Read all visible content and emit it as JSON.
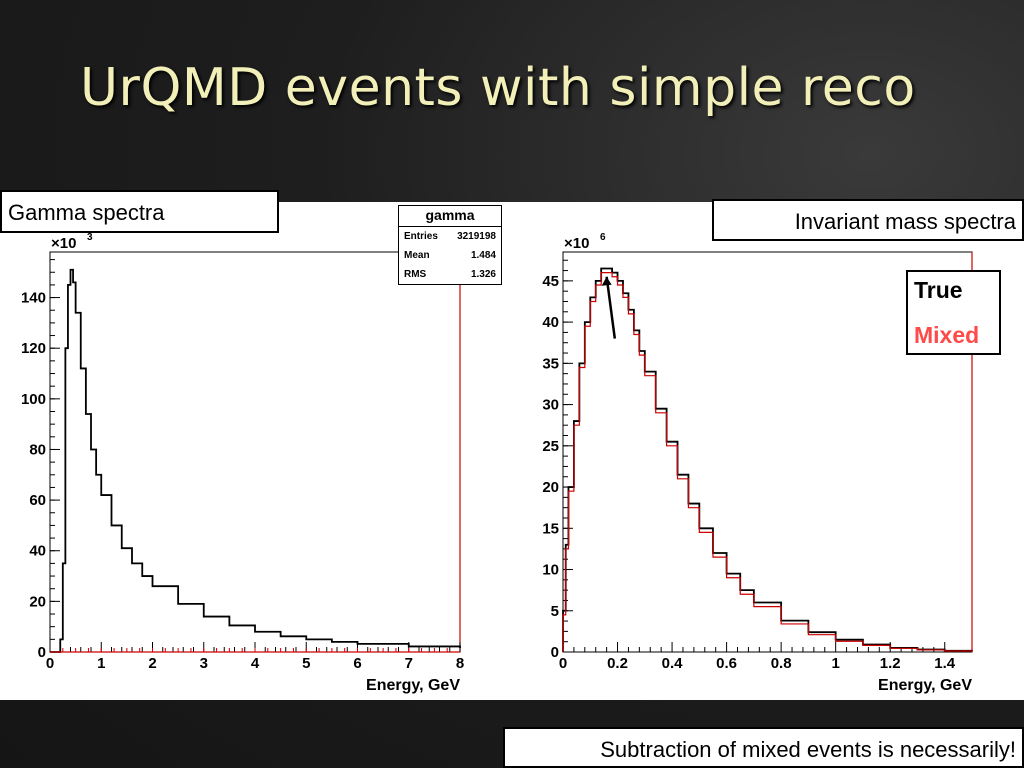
{
  "slide": {
    "title": "UrQMD events with simple reco"
  },
  "boxes": {
    "gamma_label": "Gamma spectra",
    "invariant_label": "Invariant mass spectra",
    "subtraction_note": "Subtraction of mixed events is necessarily!"
  },
  "legend": {
    "true_label": "True",
    "mixed_label": "Mixed",
    "true_color": "#000000",
    "mixed_color": "#ff4a4a"
  },
  "stats": {
    "title": "gamma",
    "rows": [
      {
        "key": "Entries",
        "value": "3219198"
      },
      {
        "key": "Mean",
        "value": "1.484"
      },
      {
        "key": "RMS",
        "value": "1.326"
      }
    ]
  },
  "chart_data": [
    {
      "type": "line",
      "xlabel": "Energy, GeV",
      "exponent_label": "×10",
      "exponent_power": "3",
      "xlim": [
        0,
        8
      ],
      "ylim": [
        0,
        158
      ],
      "xticks": [
        0,
        1,
        2,
        3,
        4,
        5,
        6,
        7,
        8
      ],
      "yticks": [
        0,
        20,
        40,
        60,
        80,
        100,
        120,
        140
      ],
      "series": [
        {
          "color": "#000000",
          "x": [
            0.0,
            0.15,
            0.2,
            0.25,
            0.3,
            0.35,
            0.4,
            0.45,
            0.5,
            0.6,
            0.7,
            0.8,
            0.9,
            1.0,
            1.2,
            1.4,
            1.6,
            1.8,
            2.0,
            2.5,
            3.0,
            3.5,
            4.0,
            4.5,
            5.0,
            5.5,
            6.0,
            7.0,
            8.0
          ],
          "values": [
            0,
            0,
            5,
            35,
            120,
            145,
            151,
            146,
            134,
            112,
            94,
            80,
            70,
            62,
            50,
            41,
            35,
            30,
            26,
            19,
            14,
            10.5,
            8,
            6.2,
            5,
            4,
            3.2,
            2.2,
            1.6
          ]
        },
        {
          "color": "#cc0000",
          "x": [
            0,
            8
          ],
          "values": [
            0,
            0
          ]
        }
      ]
    },
    {
      "type": "line",
      "xlabel": "Energy, GeV",
      "exponent_label": "×10",
      "exponent_power": "6",
      "xlim": [
        0,
        1.5
      ],
      "ylim": [
        0,
        48.5
      ],
      "xticks": [
        0,
        0.2,
        0.4,
        0.6,
        0.8,
        1,
        1.2,
        1.4
      ],
      "yticks": [
        0,
        5,
        10,
        15,
        20,
        25,
        30,
        35,
        40,
        45
      ],
      "series": [
        {
          "color": "#000000",
          "x": [
            0.0,
            0.01,
            0.02,
            0.04,
            0.06,
            0.08,
            0.1,
            0.12,
            0.14,
            0.16,
            0.18,
            0.2,
            0.22,
            0.24,
            0.26,
            0.28,
            0.3,
            0.34,
            0.38,
            0.42,
            0.46,
            0.5,
            0.55,
            0.6,
            0.65,
            0.7,
            0.8,
            0.9,
            1.0,
            1.1,
            1.2,
            1.3,
            1.4,
            1.5
          ],
          "values": [
            5,
            13,
            20,
            28,
            35,
            40,
            43,
            45,
            46.5,
            46.5,
            46,
            45,
            43.5,
            41.5,
            39,
            36.5,
            34,
            29.5,
            25.5,
            21.5,
            18,
            15,
            12,
            9.5,
            7.5,
            6,
            3.8,
            2.4,
            1.5,
            0.9,
            0.5,
            0.3,
            0.15,
            0.1
          ]
        },
        {
          "color": "#cc0000",
          "x": [
            0.0,
            0.01,
            0.02,
            0.04,
            0.06,
            0.08,
            0.1,
            0.12,
            0.14,
            0.16,
            0.18,
            0.2,
            0.22,
            0.24,
            0.26,
            0.28,
            0.3,
            0.34,
            0.38,
            0.42,
            0.46,
            0.5,
            0.55,
            0.6,
            0.65,
            0.7,
            0.8,
            0.9,
            1.0,
            1.1,
            1.2,
            1.3,
            1.4,
            1.5
          ],
          "values": [
            4.5,
            12.5,
            19.5,
            27.5,
            34.5,
            39.5,
            42.5,
            44.5,
            46,
            46,
            45.5,
            44.5,
            43,
            41,
            38.5,
            36,
            33.5,
            29,
            25,
            21,
            17.5,
            14.5,
            11.5,
            9,
            7,
            5.5,
            3.4,
            2.1,
            1.3,
            0.8,
            0.45,
            0.25,
            0.12,
            0.08
          ]
        }
      ],
      "annotation": "arrow pointing to peak"
    }
  ]
}
